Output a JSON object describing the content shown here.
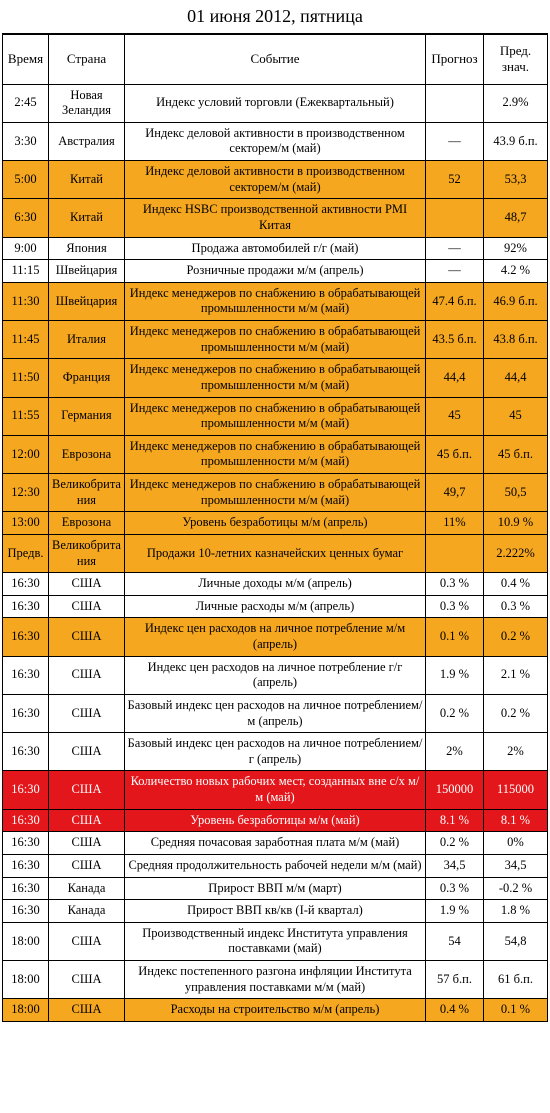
{
  "title": "01 июня 2012, пятница",
  "columns": [
    "Время",
    "Страна",
    "Событие",
    "Прогноз",
    "Пред. знач."
  ],
  "colors": {
    "none": "#ffffff",
    "orange": "#f6a720",
    "red": "#e3161b",
    "red_text": "#ffffff"
  },
  "rows": [
    {
      "hl": "none",
      "time": "2:45",
      "country": "Новая Зеландия",
      "event": "Индекс условий торговли (Ежеквартальный)",
      "forecast": "",
      "prev": "2.9%"
    },
    {
      "hl": "none",
      "time": "3:30",
      "country": "Австралия",
      "event": "Индекс деловой активности в производственном секторем/м (май)",
      "forecast": "—",
      "prev": "43.9 б.п."
    },
    {
      "hl": "orange",
      "time": "5:00",
      "country": "Китай",
      "event": "Индекс деловой активности в производственном секторем/м (май)",
      "forecast": "52",
      "prev": "53,3"
    },
    {
      "hl": "orange",
      "time": "6:30",
      "country": "Китай",
      "event": "Индекс HSBC производственной активности PMI Китая",
      "forecast": "",
      "prev": "48,7"
    },
    {
      "hl": "none",
      "time": "9:00",
      "country": "Япония",
      "event": "Продажа автомобилей г/г (май)",
      "forecast": "—",
      "prev": "92%"
    },
    {
      "hl": "none",
      "time": "11:15",
      "country": "Швейцария",
      "event": "Розничные продажи м/м (апрель)",
      "forecast": "—",
      "prev": "4.2 %"
    },
    {
      "hl": "orange",
      "time": "11:30",
      "country": "Швейцария",
      "event": "Индекс менеджеров по снабжению в обрабатывающей промышленности м/м (май)",
      "forecast": "47.4 б.п.",
      "prev": "46.9 б.п."
    },
    {
      "hl": "orange",
      "time": "11:45",
      "country": "Италия",
      "event": "Индекс менеджеров по снабжению в обрабатывающей промышленности м/м (май)",
      "forecast": "43.5 б.п.",
      "prev": "43.8 б.п."
    },
    {
      "hl": "orange",
      "time": "11:50",
      "country": "Франция",
      "event": "Индекс менеджеров по снабжению в обрабатывающей промышленности м/м (май)",
      "forecast": "44,4",
      "prev": "44,4"
    },
    {
      "hl": "orange",
      "time": "11:55",
      "country": "Германия",
      "event": "Индекс менеджеров по снабжению в обрабатывающей промышленности м/м (май)",
      "forecast": "45",
      "prev": "45"
    },
    {
      "hl": "orange",
      "time": "12:00",
      "country": "Еврозона",
      "event": "Индекс менеджеров по снабжению в обрабатывающей промышленности м/м (май)",
      "forecast": "45 б.п.",
      "prev": "45 б.п."
    },
    {
      "hl": "orange",
      "time": "12:30",
      "country": "Великобритания",
      "event": "Индекс менеджеров по снабжению в обрабатывающей промышленности м/м (май)",
      "forecast": "49,7",
      "prev": "50,5"
    },
    {
      "hl": "orange",
      "time": "13:00",
      "country": "Еврозона",
      "event": "Уровень безработицы м/м (апрель)",
      "forecast": "11%",
      "prev": "10.9 %"
    },
    {
      "hl": "orange",
      "time": "Предв.",
      "country": "Великобритания",
      "event": "Продажи 10-летних казначейских ценных бумаг",
      "forecast": "",
      "prev": "2.222%"
    },
    {
      "hl": "none",
      "time": "16:30",
      "country": "США",
      "event": "Личные доходы м/м (апрель)",
      "forecast": "0.3 %",
      "prev": "0.4 %"
    },
    {
      "hl": "none",
      "time": "16:30",
      "country": "США",
      "event": "Личные расходы м/м (апрель)",
      "forecast": "0.3 %",
      "prev": "0.3 %"
    },
    {
      "hl": "orange",
      "time": "16:30",
      "country": "США",
      "event": "Индекс цен расходов на личное потребление м/м (апрель)",
      "forecast": "0.1 %",
      "prev": "0.2 %"
    },
    {
      "hl": "none",
      "time": "16:30",
      "country": "США",
      "event": "Индекс цен расходов на личное потребление г/г (апрель)",
      "forecast": "1.9 %",
      "prev": "2.1 %"
    },
    {
      "hl": "none",
      "time": "16:30",
      "country": "США",
      "event": "Базовый индекс цен расходов на личное потреблением/м (апрель)",
      "forecast": "0.2 %",
      "prev": "0.2 %"
    },
    {
      "hl": "none",
      "time": "16:30",
      "country": "США",
      "event": "Базовый индекс цен расходов на личное потреблением/г (апрель)",
      "forecast": "2%",
      "prev": "2%"
    },
    {
      "hl": "red",
      "time": "16:30",
      "country": "США",
      "event": "Количество новых рабочих мест, созданных вне с/х м/м (май)",
      "forecast": "150000",
      "prev": "115000"
    },
    {
      "hl": "red",
      "time": "16:30",
      "country": "США",
      "event": "Уровень безработицы м/м (май)",
      "forecast": "8.1 %",
      "prev": "8.1 %"
    },
    {
      "hl": "none",
      "time": "16:30",
      "country": "США",
      "event": "Средняя почасовая заработная плата м/м (май)",
      "forecast": "0.2 %",
      "prev": "0%"
    },
    {
      "hl": "none",
      "time": "16:30",
      "country": "США",
      "event": "Средняя продолжительность рабочей недели м/м (май)",
      "forecast": "34,5",
      "prev": "34,5"
    },
    {
      "hl": "none",
      "time": "16:30",
      "country": "Канада",
      "event": "Прирост ВВП м/м (март)",
      "forecast": "0.3 %",
      "prev": "-0.2 %"
    },
    {
      "hl": "none",
      "time": "16:30",
      "country": "Канада",
      "event": "Прирост ВВП кв/кв (I-й квартал)",
      "forecast": "1.9 %",
      "prev": "1.8 %"
    },
    {
      "hl": "none",
      "time": "18:00",
      "country": "США",
      "event": "Производственный индекс Института управления поставками (май)",
      "forecast": "54",
      "prev": "54,8"
    },
    {
      "hl": "none",
      "time": "18:00",
      "country": "США",
      "event": "Индекс постепенного разгона инфляции Института управления поставками м/м (май)",
      "forecast": "57 б.п.",
      "prev": "61 б.п."
    },
    {
      "hl": "orange",
      "time": "18:00",
      "country": "США",
      "event": "Расходы на строительство м/м (апрель)",
      "forecast": "0.4 %",
      "prev": "0.1 %"
    }
  ]
}
